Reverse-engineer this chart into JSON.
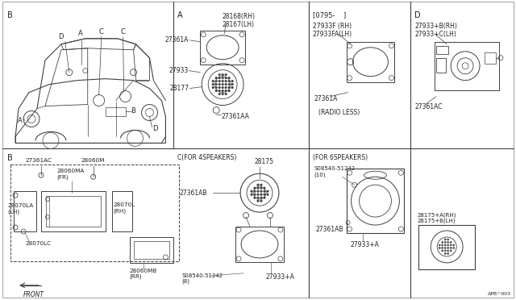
{
  "bg_color": "#ffffff",
  "line_color": "#404040",
  "text_color": "#222222",
  "fig_width": 6.4,
  "fig_height": 3.72,
  "dpi": 100,
  "labels": {
    "sec_A": "A",
    "sec_B": "B",
    "sec_C": "C(FOR 4SPEAKERS)",
    "sec_C2": "(FOR 6SPEAKERS)",
    "sec_D": "D",
    "date_code": "[0795-    ]",
    "radio_less": "(RADIO LESS)",
    "p28168": "28168(RH)\n28167(LH)",
    "p27361A": "27361A",
    "p27933": "27933",
    "p28177": "28177",
    "p27361AA": "27361AA",
    "p27933F": "27933F (RH)\n27933FA(LH)",
    "p27361A2": "27361A",
    "p27933B": "27933+B(RH)\n27933+C(LH)",
    "p27361AC": "27361AC",
    "p28175": "28175",
    "p27361AB": "27361AB",
    "p08540_8": "S08540-51242\n(8)",
    "p27933A": "27933+A",
    "p08540_10": "S08540-51242\n(10)",
    "p27361AB2": "27361AB",
    "p28175A": "28175+A(RH)\n28175+B(LH)",
    "p27933A2": "27933+A",
    "p_ref": "APB^003",
    "p27361AC2": "27361AC",
    "p28060M": "28060M",
    "p28060MA": "28060MA\n(FR)",
    "p28070LA": "28070LA\n(LH)",
    "p28070L": "28070L\n(RH)",
    "p28070LC": "28070LC",
    "p28060MB": "28060MB\n(RR)",
    "front_label": "FRONT",
    "car_labels": {
      "A_top": "A",
      "D_top": "D",
      "C1": "C",
      "C2": "C",
      "B_car": "B",
      "A_bot": "A",
      "D_bot": "D"
    }
  }
}
